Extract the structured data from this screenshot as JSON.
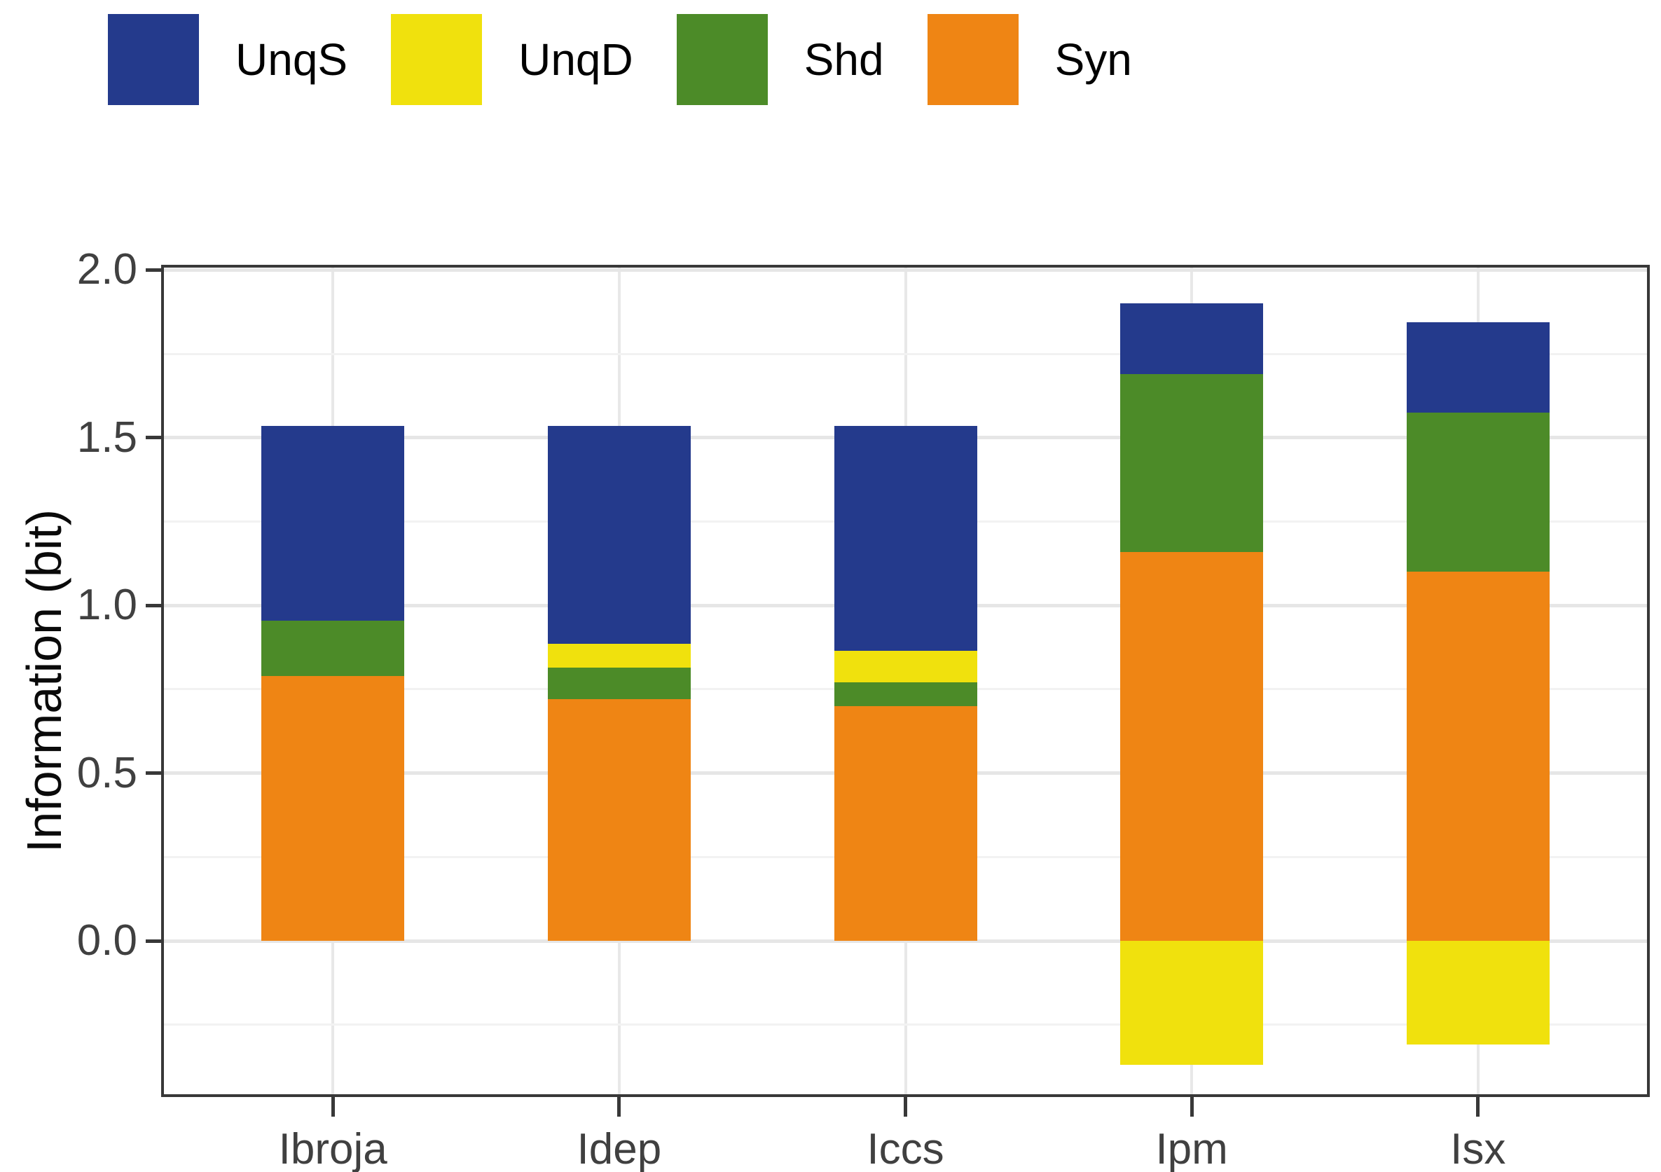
{
  "chart_data": {
    "type": "bar",
    "stacked": true,
    "orientation": "vertical",
    "title": "",
    "xlabel": "",
    "ylabel": "Information (bit)",
    "categories": [
      "Ibroja",
      "Idep",
      "Iccs",
      "Ipm",
      "Isx"
    ],
    "series": [
      {
        "name": "UnqS",
        "color": "#243A8C",
        "values": [
          0.58,
          0.65,
          0.67,
          0.21,
          0.27
        ]
      },
      {
        "name": "UnqD",
        "color": "#F0E10D",
        "values": [
          0.0,
          0.07,
          0.095,
          -0.37,
          -0.31
        ]
      },
      {
        "name": "Shd",
        "color": "#4C8B28",
        "values": [
          0.165,
          0.095,
          0.07,
          0.53,
          0.475
        ]
      },
      {
        "name": "Syn",
        "color": "#EF8514",
        "values": [
          0.79,
          0.72,
          0.7,
          1.16,
          1.1
        ]
      }
    ],
    "stack_order_bottom_to_top": [
      "Syn",
      "Shd",
      "UnqD",
      "UnqS"
    ],
    "bar_totals_positive": [
      1.535,
      1.535,
      1.535,
      1.9,
      1.845
    ],
    "y_axis": {
      "ticks": [
        {
          "value": 0.0,
          "label": "0.0"
        },
        {
          "value": 0.5,
          "label": "0.5"
        },
        {
          "value": 1.0,
          "label": "1.0"
        },
        {
          "value": 1.5,
          "label": "1.5"
        },
        {
          "value": 2.0,
          "label": "2.0"
        }
      ],
      "minor_gridlines": [
        -0.25,
        0.25,
        0.75,
        1.25,
        1.75
      ],
      "range": [
        -0.466,
        2.016
      ]
    },
    "legend": {
      "position": "top",
      "items": [
        {
          "label": "UnqS",
          "color": "#243A8C"
        },
        {
          "label": "UnqD",
          "color": "#F0E10D"
        },
        {
          "label": "Shd",
          "color": "#4C8B28"
        },
        {
          "label": "Syn",
          "color": "#EF8514"
        }
      ]
    },
    "grid": true,
    "panel_border_color": "#383838",
    "major_grid_color": "#e6e6e6",
    "minor_grid_color": "#f2f2f2",
    "tick_label_color": "#404040"
  }
}
